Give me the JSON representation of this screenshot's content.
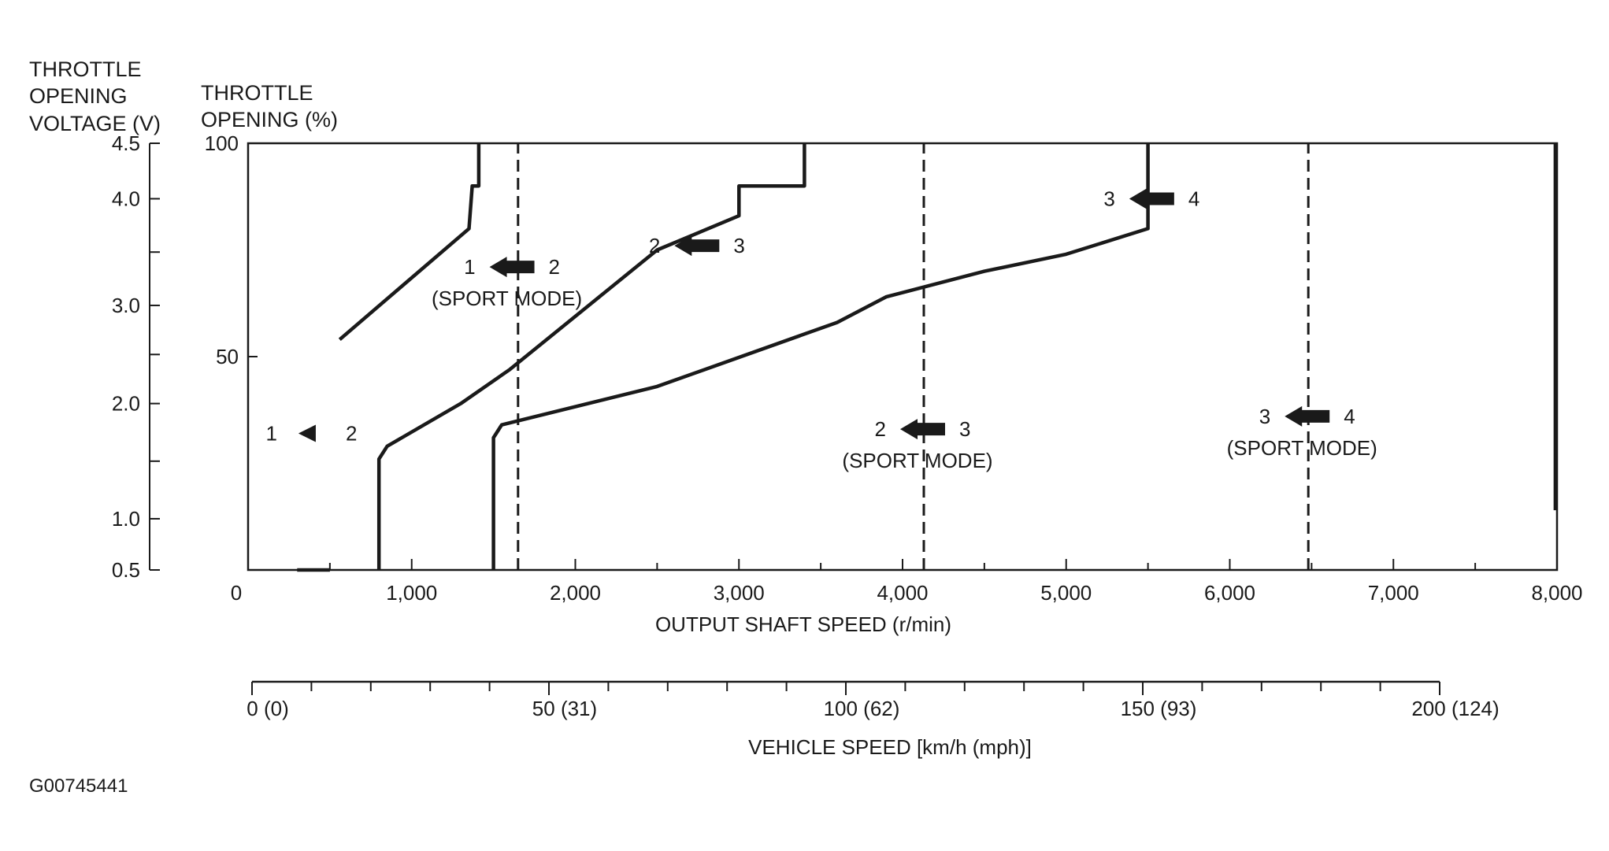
{
  "figure_id": "G00745441",
  "left_axis_title": [
    "THROTTLE",
    "OPENING",
    "VOLTAGE (V)"
  ],
  "pct_axis_title": [
    "THROTTLE",
    "OPENING (%)"
  ],
  "chart_data": {
    "type": "line",
    "xlabel": "OUTPUT SHAFT SPEED (r/min)",
    "xlim": [
      0,
      8000
    ],
    "x_tick_labels": [
      "0",
      "1,000",
      "2,000",
      "3,000",
      "4,000",
      "5,000",
      "6,000",
      "7,000",
      "8,000"
    ],
    "x_tick_values": [
      0,
      1000,
      2000,
      3000,
      4000,
      5000,
      6000,
      7000,
      8000
    ],
    "ylim_percent": [
      0,
      100
    ],
    "y_percent_tick_labels": [
      "50",
      "100"
    ],
    "y_percent_tick_values": [
      50,
      100
    ],
    "voltage_axis": {
      "range": [
        0.5,
        4.5
      ],
      "tick_labels": [
        "0.5",
        "1.0",
        "2.0",
        "3.0",
        "4.0",
        "4.5"
      ],
      "tick_values": [
        0.5,
        1.0,
        2.0,
        3.0,
        4.0,
        4.5
      ],
      "tick_percent": [
        0,
        12,
        39,
        62,
        87,
        100
      ]
    },
    "secondary_x_axis": {
      "label": "VEHICLE SPEED [km/h (mph)]",
      "range_kmh": [
        0,
        200
      ],
      "tick_labels": [
        "0 (0)",
        "50 (31)",
        "100 (62)",
        "150 (93)",
        "200 (124)"
      ],
      "tick_values": [
        0,
        50,
        100,
        150,
        200
      ]
    },
    "series": [
      {
        "points": [
          [
            300,
            0
          ],
          [
            500,
            0
          ]
        ]
      },
      {
        "points": [
          [
            560,
            54
          ],
          [
            1350,
            80
          ],
          [
            1370,
            90
          ],
          [
            1410,
            90
          ],
          [
            1410,
            100
          ]
        ]
      },
      {
        "points": [
          [
            800,
            0
          ],
          [
            800,
            26
          ],
          [
            850,
            29
          ],
          [
            1300,
            39
          ],
          [
            1600,
            47
          ],
          [
            2500,
            75
          ],
          [
            3000,
            83
          ],
          [
            3000,
            90
          ],
          [
            3400,
            90
          ],
          [
            3400,
            100
          ]
        ]
      },
      {
        "points": [
          [
            1500,
            0
          ],
          [
            1500,
            31
          ],
          [
            1550,
            34
          ],
          [
            2500,
            43
          ],
          [
            3600,
            58
          ],
          [
            3900,
            64
          ],
          [
            4500,
            70
          ],
          [
            5000,
            74
          ],
          [
            5500,
            80
          ],
          [
            5500,
            100
          ]
        ]
      },
      {
        "points": [
          [
            7990,
            14
          ],
          [
            7990,
            100
          ]
        ]
      }
    ],
    "dashed_lines": [
      {
        "x": 1650,
        "y_from": 0,
        "y_to": 100
      },
      {
        "x": 4130,
        "y_from": 0,
        "y_to": 100
      },
      {
        "x": 6480,
        "y_from": 0,
        "y_to": 100
      }
    ],
    "annotations": [
      {
        "from": "1",
        "to": "2",
        "label": "",
        "x": 1620,
        "y": 71
      },
      {
        "from": "1",
        "to": "2",
        "label": "",
        "x": 250,
        "y": 32
      },
      {
        "from": "2",
        "to": "3",
        "label": "",
        "x": 2750,
        "y": 76
      },
      {
        "from": "3",
        "to": "4",
        "label": "",
        "x": 5530,
        "y": 87
      },
      {
        "from": "2",
        "to": "3",
        "label": "",
        "x": 4130,
        "y": 33
      },
      {
        "from": "3",
        "to": "4",
        "label": "",
        "x": 6480,
        "y": 36
      }
    ],
    "sport_mode_label": "(SPORT MODE)",
    "sport_mode_annotation_indices": [
      0,
      4,
      5
    ]
  }
}
